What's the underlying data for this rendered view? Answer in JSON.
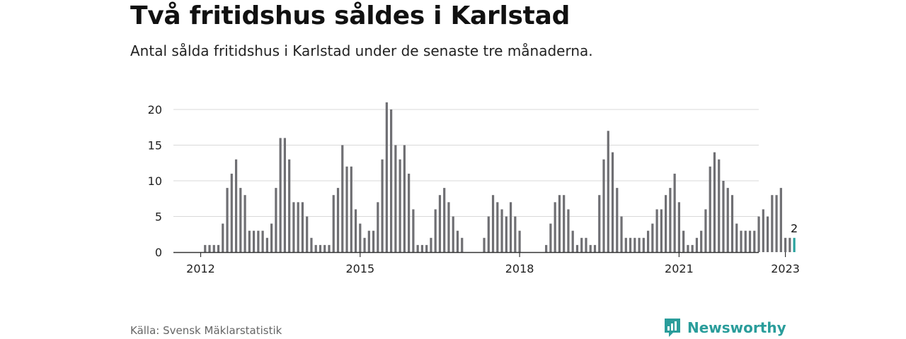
{
  "title": "Två fritidshus såldes i Karlstad",
  "subtitle": "Antal sålda fritidshus i Karlstad under de senaste tre månaderna.",
  "source": "Källa: Svensk Mäklarstatistik",
  "brand": "Newsworthy",
  "colors": {
    "bar": "#6f6f73",
    "highlight": "#2aa39e",
    "grid": "#d9d9d9",
    "axis": "#333333",
    "brand": "#2a9d9b"
  },
  "chart_data": {
    "type": "bar",
    "title": "Två fritidshus såldes i Karlstad",
    "xlabel": "",
    "ylabel": "",
    "ylim": [
      0,
      20
    ],
    "yticks": [
      0,
      5,
      10,
      15,
      20
    ],
    "xticks": [
      "2012",
      "2015",
      "2018",
      "2021",
      "2023"
    ],
    "xtick_positions": [
      2012,
      2015,
      2018,
      2021,
      2023
    ],
    "x_start": 2011.75,
    "bars_per_year": 12,
    "grid": true,
    "highlight_label": "2",
    "values": [
      0,
      0,
      0,
      0,
      1,
      1,
      1,
      1,
      4,
      9,
      11,
      13,
      9,
      8,
      3,
      3,
      3,
      3,
      2,
      4,
      9,
      16,
      16,
      13,
      7,
      7,
      7,
      5,
      2,
      1,
      1,
      1,
      1,
      8,
      9,
      15,
      12,
      12,
      6,
      4,
      2,
      3,
      3,
      7,
      13,
      21,
      20,
      15,
      13,
      15,
      11,
      6,
      1,
      1,
      1,
      2,
      6,
      8,
      9,
      7,
      5,
      3,
      2,
      0,
      0,
      0,
      0,
      2,
      5,
      8,
      7,
      6,
      5,
      7,
      5,
      3,
      0,
      0,
      0,
      0,
      0,
      1,
      4,
      7,
      8,
      8,
      6,
      3,
      1,
      2,
      2,
      1,
      1,
      8,
      13,
      17,
      14,
      9,
      5,
      2,
      2,
      2,
      2,
      2,
      3,
      4,
      6,
      6,
      8,
      9,
      11,
      7,
      3,
      1,
      1,
      2,
      3,
      6,
      12,
      14,
      13,
      10,
      9,
      8,
      4,
      3,
      3,
      3,
      3,
      5,
      6,
      5,
      8,
      8,
      9,
      2,
      2,
      2
    ]
  }
}
